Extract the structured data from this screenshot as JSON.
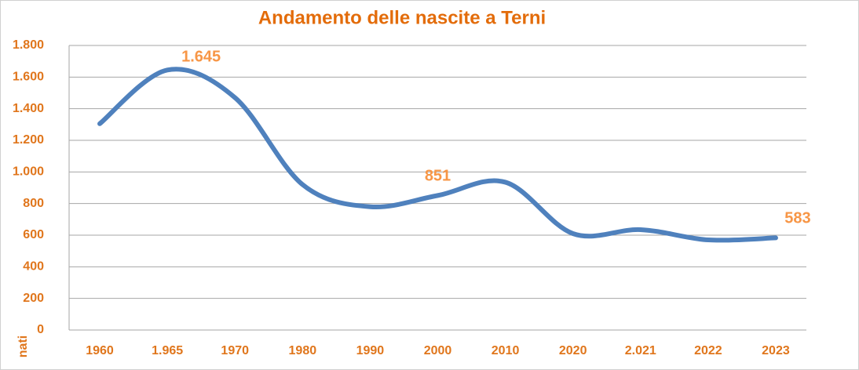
{
  "chart_data": {
    "type": "line",
    "title": "Andamento delle nascite a Terni",
    "y_label": "nati",
    "categories": [
      "1960",
      "1.965",
      "1970",
      "1980",
      "1990",
      "2000",
      "2010",
      "2020",
      "2.021",
      "2022",
      "2023"
    ],
    "series": [
      {
        "name": "nati",
        "color": "#4f81bd",
        "values": [
          1305,
          1645,
          1470,
          920,
          780,
          851,
          935,
          610,
          635,
          570,
          583
        ],
        "value_labels": [
          null,
          "1.645",
          null,
          null,
          null,
          "851",
          null,
          null,
          null,
          null,
          "583"
        ]
      }
    ],
    "ylim": [
      0,
      1800
    ],
    "yticks": [
      0,
      200,
      400,
      600,
      800,
      {
        "value": 1000,
        "label": "1.000"
      },
      {
        "value": 1200,
        "label": "1.200"
      },
      {
        "value": 1400,
        "label": "1.400"
      },
      {
        "value": 1600,
        "label": "1.600"
      },
      {
        "value": 1800,
        "label": "1.800"
      }
    ],
    "grid": true,
    "smooth": true
  }
}
